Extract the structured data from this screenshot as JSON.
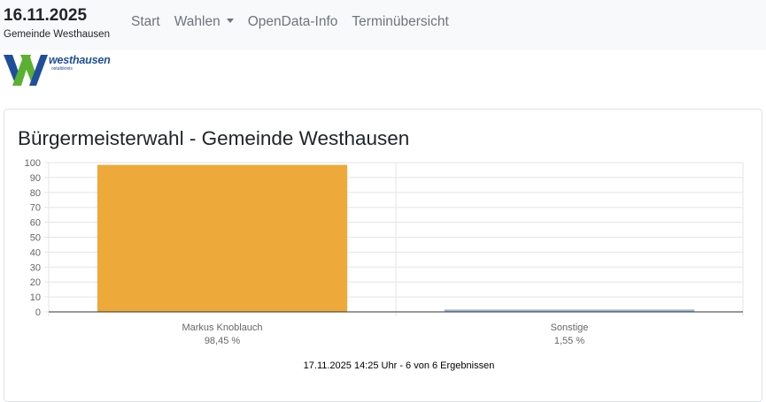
{
  "navbar": {
    "date": "16.11.2025",
    "municipality": "Gemeinde Westhausen",
    "links": [
      {
        "label": "Start"
      },
      {
        "label": "Wahlen",
        "dropdown": true
      },
      {
        "label": "OpenData-Info"
      },
      {
        "label": "Terminübersicht"
      }
    ]
  },
  "logo": {
    "text": "westhausen",
    "subtext": "ostalbkreis",
    "colors": {
      "green": "#5ab031",
      "blue": "#1f4e9a"
    }
  },
  "card": {
    "title": "Bürgermeisterwahl - Gemeinde Westhausen",
    "footnote": "17.11.2025 14:25 Uhr - 6 von 6 Ergebnissen"
  },
  "chart_data": {
    "type": "bar",
    "categories": [
      "Markus Knoblauch",
      "Sonstige"
    ],
    "value_labels": [
      "98,45 %",
      "1,55 %"
    ],
    "values": [
      98.45,
      1.55
    ],
    "colors": [
      "#eea93b",
      "#9eb2d4"
    ],
    "ylim": [
      0,
      100
    ],
    "yticks": [
      0,
      10,
      20,
      30,
      40,
      50,
      60,
      70,
      80,
      90,
      100
    ],
    "grid": true,
    "legend": "none"
  }
}
